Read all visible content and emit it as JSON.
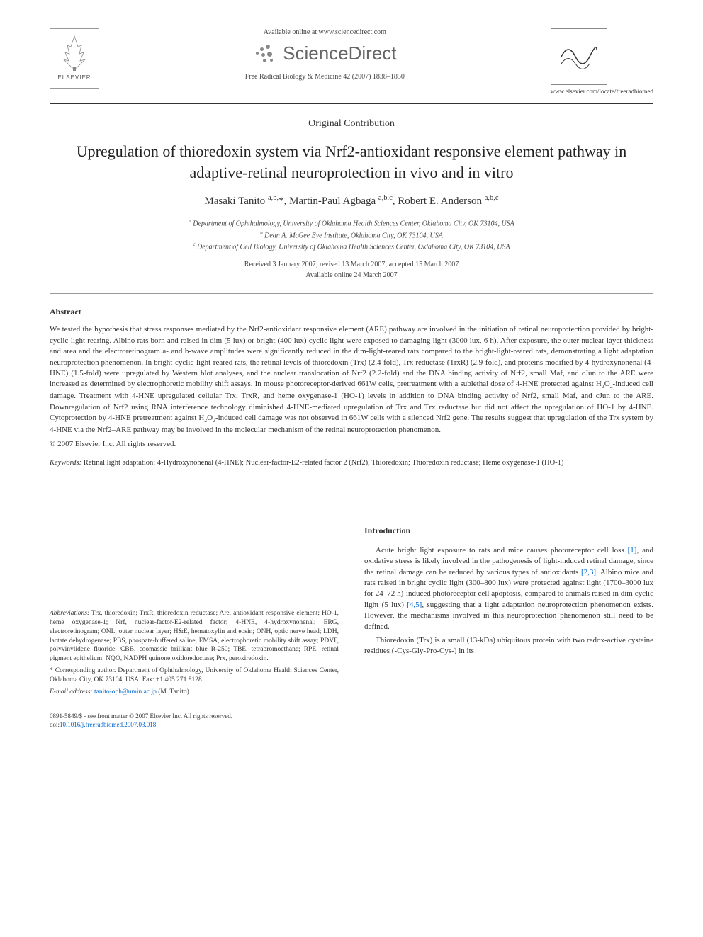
{
  "header": {
    "available_online": "Available online at www.sciencedirect.com",
    "sciencedirect": "ScienceDirect",
    "journal_ref": "Free Radical Biology & Medicine 42 (2007) 1838–1850",
    "elsevier_label": "ELSEVIER",
    "journal_url": "www.elsevier.com/locate/freeradbiomed"
  },
  "article_type": "Original Contribution",
  "title": "Upregulation of thioredoxin system via Nrf2-antioxidant responsive element pathway in adaptive-retinal neuroprotection in vivo and in vitro",
  "authors_html": "Masaki Tanito <sup>a,b,</sup>*, Martin-Paul Agbaga <sup>a,b,c</sup>, Robert E. Anderson <sup>a,b,c</sup>",
  "affiliations": {
    "a": "Department of Ophthalmology, University of Oklahoma Health Sciences Center, Oklahoma City, OK 73104, USA",
    "b": "Dean A. McGee Eye Institute, Oklahoma City, OK 73104, USA",
    "c": "Department of Cell Biology, University of Oklahoma Health Sciences Center, Oklahoma City, OK 73104, USA"
  },
  "dates": {
    "line1": "Received 3 January 2007; revised 13 March 2007; accepted 15 March 2007",
    "line2": "Available online 24 March 2007"
  },
  "abstract": {
    "heading": "Abstract",
    "body": "We tested the hypothesis that stress responses mediated by the Nrf2-antioxidant responsive element (ARE) pathway are involved in the initiation of retinal neuroprotection provided by bright-cyclic-light rearing. Albino rats born and raised in dim (5 lux) or bright (400 lux) cyclic light were exposed to damaging light (3000 lux, 6 h). After exposure, the outer nuclear layer thickness and area and the electroretinogram a- and b-wave amplitudes were significantly reduced in the dim-light-reared rats compared to the bright-light-reared rats, demonstrating a light adaptation neuroprotection phenomenon. In bright-cyclic-light-reared rats, the retinal levels of thioredoxin (Trx) (2.4-fold), Trx reductase (TrxR) (2.9-fold), and proteins modified by 4-hydroxynonenal (4-HNE) (1.5-fold) were upregulated by Western blot analyses, and the nuclear translocation of Nrf2 (2.2-fold) and the DNA binding activity of Nrf2, small Maf, and cJun to the ARE were increased as determined by electrophoretic mobility shift assays. In mouse photoreceptor-derived 661W cells, pretreatment with a sublethal dose of 4-HNE protected against H₂O₂-induced cell damage. Treatment with 4-HNE upregulated cellular Trx, TrxR, and heme oxygenase-1 (HO-1) levels in addition to DNA binding activity of Nrf2, small Maf, and cJun to the ARE. Downregulation of Nrf2 using RNA interference technology diminished 4-HNE-mediated upregulation of Trx and Trx reductase but did not affect the upregulation of HO-1 by 4-HNE. Cytoprotection by 4-HNE pretreatment against H₂O₂-induced cell damage was not observed in 661W cells with a silenced Nrf2 gene. The results suggest that upregulation of the Trx system by 4-HNE via the Nrf2–ARE pathway may be involved in the molecular mechanism of the retinal neuroprotection phenomenon.",
    "copyright": "© 2007 Elsevier Inc. All rights reserved."
  },
  "keywords": {
    "label": "Keywords:",
    "text": "Retinal light adaptation; 4-Hydroxynonenal (4-HNE); Nuclear-factor-E2-related factor 2 (Nrf2), Thioredoxin; Thioredoxin reductase; Heme oxygenase-1 (HO-1)"
  },
  "abbreviations": {
    "label": "Abbreviations:",
    "text": "Trx, thioredoxin; TrxR, thioredoxin reductase; Are, antioxidant responsive element; HO-1, heme oxygenase-1; Nrf, nuclear-factor-E2-related factor; 4-HNE, 4-hydroxynonenal; ERG, electroretinogram; ONL, outer nuclear layer; H&E, hematoxylin and eosin; ONH, optic nerve head; LDH, lactate dehydrogenase; PBS, phospate-buffered saline; EMSA, electrophoretic mobility shift assay; PDVF, polyvinylidene fluoride; CBB, coomassie brilliant blue R-250; TBE, tetrabromoethane; RPE, retinal pigment epithelium; NQO, NADPH quinone oxidoreductase; Prx, peroxiredoxin."
  },
  "corresponding": "* Corresponding author. Department of Ophthalmology, University of Oklahoma Health Sciences Center, Oklahoma City, OK 73104, USA. Fax: +1 405 271 8128.",
  "email": {
    "label": "E-mail address:",
    "address": "tanito-oph@umin.ac.jp",
    "suffix": "(M. Tanito)."
  },
  "intro": {
    "heading": "Introduction",
    "p1_pre": "Acute bright light exposure to rats and mice causes photoreceptor cell loss ",
    "p1_ref1": "[1]",
    "p1_mid": ", and oxidative stress is likely involved in the pathogenesis of light-induced retinal damage, since the retinal damage can be reduced by various types of antioxidants ",
    "p1_ref2": "[2,3]",
    "p1_mid2": ". Albino mice and rats raised in bright cyclic light (300–800 lux) were protected against light (1700–3000 lux for 24–72 h)-induced photoreceptor cell apoptosis, compared to animals raised in dim cyclic light (5 lux) ",
    "p1_ref3": "[4,5]",
    "p1_post": ", suggesting that a light adaptation neuroprotection phenomenon exists. However, the mechanisms involved in this neuroprotection phenomenon still need to be defined.",
    "p2": "Thioredoxin (Trx) is a small (13-kDa) ubiquitous protein with two redox-active cysteine residues (-Cys-Gly-Pro-Cys-) in its"
  },
  "footer": {
    "line1": "0891-5849/$ - see front matter © 2007 Elsevier Inc. All rights reserved.",
    "doi_prefix": "doi:",
    "doi": "10.1016/j.freeradbiomed.2007.03.018"
  },
  "colors": {
    "link": "#0066cc",
    "text": "#333333",
    "rule": "#333333"
  }
}
